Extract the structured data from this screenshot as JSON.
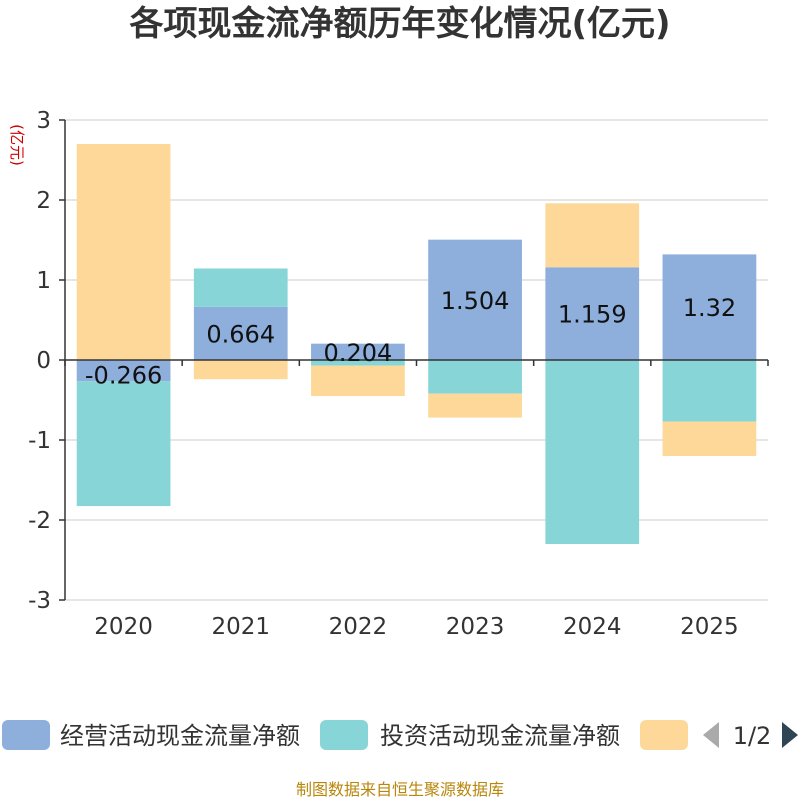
{
  "chart_data": {
    "type": "bar",
    "stacked": true,
    "title": "各项现金流净额历年变化情况(亿元)",
    "ylabel": "(亿元)",
    "ylim": [
      -3,
      3
    ],
    "yticks": [
      3,
      2,
      1,
      0,
      -1,
      -2,
      -3
    ],
    "categories": [
      "2020",
      "2021",
      "2022",
      "2023",
      "2024",
      "2025"
    ],
    "series": [
      {
        "name": "经营活动现金流量净额",
        "color": "#8eaedc",
        "values": [
          -0.266,
          0.664,
          0.204,
          1.504,
          1.159,
          1.32
        ],
        "labels": [
          "-0.266",
          "0.664",
          "0.204",
          "1.504",
          "1.159",
          "1.32"
        ]
      },
      {
        "name": "投资活动现金流量净额",
        "color": "#88d5d8",
        "values": [
          -1.56,
          0.48,
          -0.07,
          -0.42,
          -2.3,
          -0.77
        ]
      },
      {
        "name": "",
        "color": "#fdd899",
        "values": [
          2.7,
          -0.24,
          -0.38,
          -0.3,
          0.8,
          -0.43
        ]
      }
    ],
    "legend": {
      "position": "bottom",
      "page": "1/2"
    },
    "source": "制图数据来自恒生聚源数据库"
  }
}
